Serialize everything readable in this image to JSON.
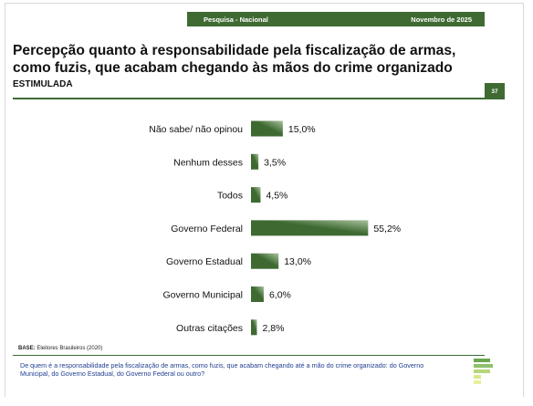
{
  "header": {
    "left": "Pesquisa - Nacional",
    "right": "Novembro de 2025"
  },
  "title": "Percepção quanto à responsabilidade pela fiscalização de armas, como fuzis, que acabam chegando às mãos do crime organizado",
  "subtitle": "ESTIMULADA",
  "page_number": "37",
  "base": {
    "label": "BASE:",
    "text": " Eleitores Brasileiros (2020)"
  },
  "question": "De quem é a responsabilidade pela fiscalização de armas, como fuzis, que acabam chegando até a mão do crime organizado: do Governo Municipal, do Governo Estadual, do Governo Federal ou outro?",
  "colors": {
    "bar_dark": "#3e6a32",
    "bar_light": "#a9c29d",
    "accent": "#3f6b33"
  },
  "chart_data": {
    "type": "bar",
    "orientation": "horizontal",
    "categories": [
      "Não sabe/ não opinou",
      "Nenhum desses",
      "Todos",
      "Governo Federal",
      "Governo Estadual",
      "Governo Municipal",
      "Outras citações"
    ],
    "values": [
      15.0,
      3.5,
      4.5,
      55.2,
      13.0,
      6.0,
      2.8
    ],
    "value_labels": [
      "15,0%",
      "3,5%",
      "4,5%",
      "55,2%",
      "13,0%",
      "6,0%",
      "2,8%"
    ],
    "xlim": [
      0,
      60
    ],
    "grid": false,
    "legend": "none"
  }
}
